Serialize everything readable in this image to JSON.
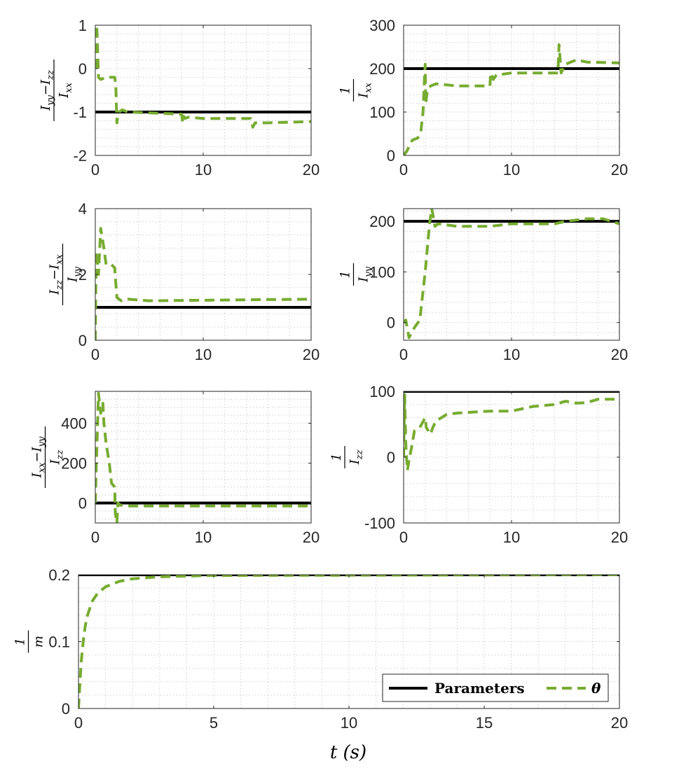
{
  "colors": {
    "param": "#000000",
    "theta": "#77AC30",
    "grid": "#cfcfcf",
    "axis": "#262626"
  },
  "xlabel": "t (s)",
  "legend": {
    "items": [
      "Parameters",
      "θ"
    ],
    "placement": "bottom-right"
  },
  "chart_data": [
    {
      "type": "line",
      "id": "p1",
      "ylabel": {
        "num": [
          "I",
          "yy",
          "−I",
          "zz"
        ],
        "den": [
          "I",
          "xx"
        ]
      },
      "xlim": [
        0,
        20
      ],
      "ylim": [
        -2,
        1
      ],
      "xticks": [
        0,
        10,
        20
      ],
      "yticks": [
        -2,
        -1,
        0,
        1
      ],
      "series": [
        {
          "role": "param",
          "x": [
            0,
            20
          ],
          "y": [
            -1,
            -1
          ]
        },
        {
          "role": "theta",
          "x": [
            0,
            0.05,
            0.15,
            0.3,
            0.5,
            1.0,
            1.8,
            1.9,
            2.0,
            2.1,
            2.2,
            2.5,
            3,
            5,
            8,
            8.1,
            8.2,
            8.3,
            8.6,
            10,
            14.4,
            14.5,
            14.6,
            14.8,
            16,
            20
          ],
          "y": [
            0,
            1,
            0.9,
            -0.2,
            -0.25,
            -0.2,
            -0.2,
            -0.4,
            -1.25,
            -1.1,
            -1.0,
            -0.95,
            -1.0,
            -1.02,
            -1.05,
            -1.25,
            -1.1,
            -1.15,
            -1.12,
            -1.15,
            -1.15,
            -1.25,
            -1.35,
            -1.25,
            -1.25,
            -1.22
          ]
        }
      ]
    },
    {
      "type": "line",
      "id": "p2",
      "ylabel": {
        "num": [
          "1"
        ],
        "den": [
          "I",
          "xx"
        ]
      },
      "xlim": [
        0,
        20
      ],
      "ylim": [
        0,
        300
      ],
      "xticks": [
        0,
        10,
        20
      ],
      "yticks": [
        0,
        100,
        200,
        300
      ],
      "series": [
        {
          "role": "param",
          "x": [
            0,
            20
          ],
          "y": [
            200,
            200
          ]
        },
        {
          "role": "theta",
          "x": [
            0,
            0.3,
            0.8,
            1.3,
            1.6,
            1.8,
            1.9,
            2.0,
            2.05,
            2.2,
            2.5,
            3,
            5,
            8,
            8.05,
            8.1,
            8.3,
            8.6,
            10,
            14.2,
            14.3,
            14.4,
            14.6,
            15,
            16,
            17,
            20
          ],
          "y": [
            0,
            10,
            35,
            40,
            55,
            100,
            160,
            210,
            120,
            150,
            160,
            165,
            160,
            160,
            185,
            190,
            175,
            185,
            190,
            190,
            190,
            255,
            190,
            210,
            220,
            215,
            213
          ]
        }
      ]
    },
    {
      "type": "line",
      "id": "p3",
      "ylabel": {
        "num": [
          "I",
          "zz",
          "−I",
          "xx"
        ],
        "den": [
          "I",
          "yy"
        ]
      },
      "xlim": [
        0,
        20
      ],
      "ylim": [
        0,
        4
      ],
      "xticks": [
        0,
        10,
        20
      ],
      "yticks": [
        0,
        2,
        4
      ],
      "series": [
        {
          "role": "param",
          "x": [
            0,
            20
          ],
          "y": [
            1,
            1
          ]
        },
        {
          "role": "theta",
          "x": [
            0,
            0.05,
            0.1,
            0.3,
            0.5,
            0.6,
            0.8,
            1.0,
            1.5,
            1.8,
            2.0,
            2.4,
            3,
            5,
            20
          ],
          "y": [
            0,
            1.8,
            2.7,
            2.0,
            3.4,
            3.2,
            2.8,
            2.3,
            2.3,
            2.2,
            1.3,
            1.2,
            1.25,
            1.2,
            1.25
          ]
        }
      ]
    },
    {
      "type": "line",
      "id": "p4",
      "ylabel": {
        "num": [
          "1"
        ],
        "den": [
          "I",
          "yy"
        ]
      },
      "xlim": [
        0,
        20
      ],
      "ylim": [
        -35,
        225
      ],
      "xticks": [
        0,
        10,
        20
      ],
      "yticks": [
        0,
        100,
        200
      ],
      "series": [
        {
          "role": "param",
          "x": [
            0,
            20
          ],
          "y": [
            200,
            200
          ]
        },
        {
          "role": "theta",
          "x": [
            0,
            0.2,
            0.5,
            1.0,
            1.5,
            2.0,
            2.4,
            2.6,
            2.7,
            2.9,
            3.2,
            5,
            8,
            10,
            14,
            15,
            17,
            18.5,
            20
          ],
          "y": [
            0,
            5,
            -30,
            -10,
            5,
            100,
            195,
            225,
            215,
            190,
            195,
            190,
            190,
            195,
            195,
            200,
            205,
            205,
            195
          ]
        }
      ]
    },
    {
      "type": "line",
      "id": "p5",
      "ylabel": {
        "num": [
          "I",
          "xx",
          "−I",
          "yy"
        ],
        "den": [
          "I",
          "zz"
        ]
      },
      "xlim": [
        0,
        20
      ],
      "ylim": [
        -100,
        560
      ],
      "xticks": [
        0,
        10,
        20
      ],
      "yticks": [
        0,
        200,
        400
      ],
      "series": [
        {
          "role": "param",
          "x": [
            0,
            20
          ],
          "y": [
            0,
            0
          ]
        },
        {
          "role": "theta",
          "x": [
            0,
            0.1,
            0.3,
            0.5,
            0.7,
            0.8,
            1.0,
            1.3,
            1.5,
            1.8,
            1.85,
            2.0,
            2.1,
            2.3,
            3,
            20
          ],
          "y": [
            0,
            200,
            550,
            450,
            500,
            400,
            300,
            200,
            100,
            80,
            -50,
            -100,
            0,
            -10,
            -15,
            -15
          ]
        }
      ]
    },
    {
      "type": "line",
      "id": "p6",
      "ylabel": {
        "num": [
          "1"
        ],
        "den": [
          "I",
          "zz"
        ]
      },
      "xlim": [
        0,
        20
      ],
      "ylim": [
        -100,
        100
      ],
      "xticks": [
        0,
        10,
        20
      ],
      "yticks": [
        -100,
        0,
        100
      ],
      "series": [
        {
          "role": "param",
          "x": [
            0,
            20
          ],
          "y": [
            100,
            100
          ]
        },
        {
          "role": "theta",
          "x": [
            0,
            0.1,
            0.2,
            0.35,
            0.5,
            0.8,
            1.0,
            1.5,
            2.0,
            2.1,
            2.5,
            2.7,
            3.0,
            4.0,
            5,
            8,
            10,
            12,
            14,
            15,
            16,
            17,
            18,
            19,
            20
          ],
          "y": [
            0,
            95,
            20,
            -20,
            -5,
            20,
            40,
            45,
            60,
            45,
            35,
            45,
            55,
            65,
            67,
            70,
            70,
            77,
            80,
            85,
            82,
            83,
            88,
            88,
            88
          ]
        }
      ]
    },
    {
      "type": "line",
      "id": "p7",
      "wide": true,
      "ylabel": {
        "num": [
          "1"
        ],
        "den": [
          "m"
        ]
      },
      "xlim": [
        0,
        20
      ],
      "ylim": [
        0,
        0.2
      ],
      "xticks": [
        0,
        5,
        10,
        15,
        20
      ],
      "yticks": [
        0,
        0.1,
        0.2
      ],
      "series": [
        {
          "role": "param",
          "x": [
            0,
            20
          ],
          "y": [
            0.2,
            0.2
          ]
        },
        {
          "role": "theta",
          "x": [
            0,
            0.1,
            0.2,
            0.3,
            0.5,
            0.7,
            1.0,
            1.5,
            2.0,
            3.0,
            4.0,
            5.0,
            20
          ],
          "y": [
            0,
            0.07,
            0.11,
            0.135,
            0.16,
            0.172,
            0.182,
            0.19,
            0.194,
            0.197,
            0.198,
            0.199,
            0.2
          ]
        }
      ]
    }
  ]
}
